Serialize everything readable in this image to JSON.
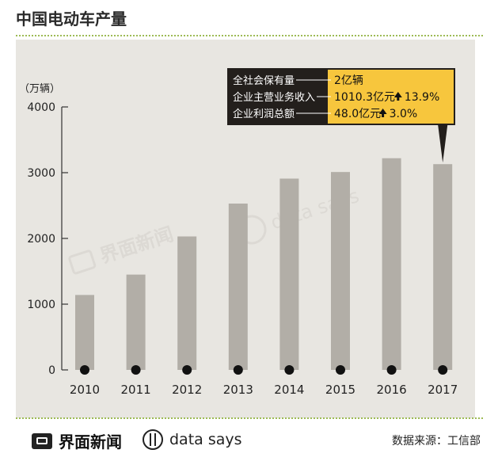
{
  "title": "中国电动车产量",
  "chart_data": {
    "type": "bar",
    "categories": [
      "2010",
      "2011",
      "2012",
      "2013",
      "2014",
      "2015",
      "2016",
      "2017"
    ],
    "values": [
      1140,
      1450,
      2030,
      2530,
      2910,
      3010,
      3220,
      3130
    ],
    "ylabel": "（万辆）",
    "yticks": [
      "0",
      "1000",
      "2000",
      "3000",
      "4000"
    ],
    "ylim": [
      0,
      4000
    ],
    "grid": false,
    "bar_color": "#b2aea7",
    "annotation": {
      "target_category": "2017",
      "rows": [
        {
          "label": "全社会保有量",
          "value": "2亿辆",
          "change": ""
        },
        {
          "label": "企业主营业务收入",
          "value": "1010.3亿元",
          "change": "13.9%"
        },
        {
          "label": "企业利润总额",
          "value": "48.0亿元",
          "change": "3.0%"
        }
      ]
    }
  },
  "watermark": {
    "brand": "界面新闻",
    "label": "data says"
  },
  "footer": {
    "brand": "界面新闻",
    "data_says": "data says",
    "source": "数据来源：工信部"
  },
  "colors": {
    "panel": "#e8e6e1",
    "bar": "#b2aea7",
    "callout_dark": "#231f1c",
    "callout_yellow": "#f7c63d",
    "accent_green": "#9dbb55"
  }
}
